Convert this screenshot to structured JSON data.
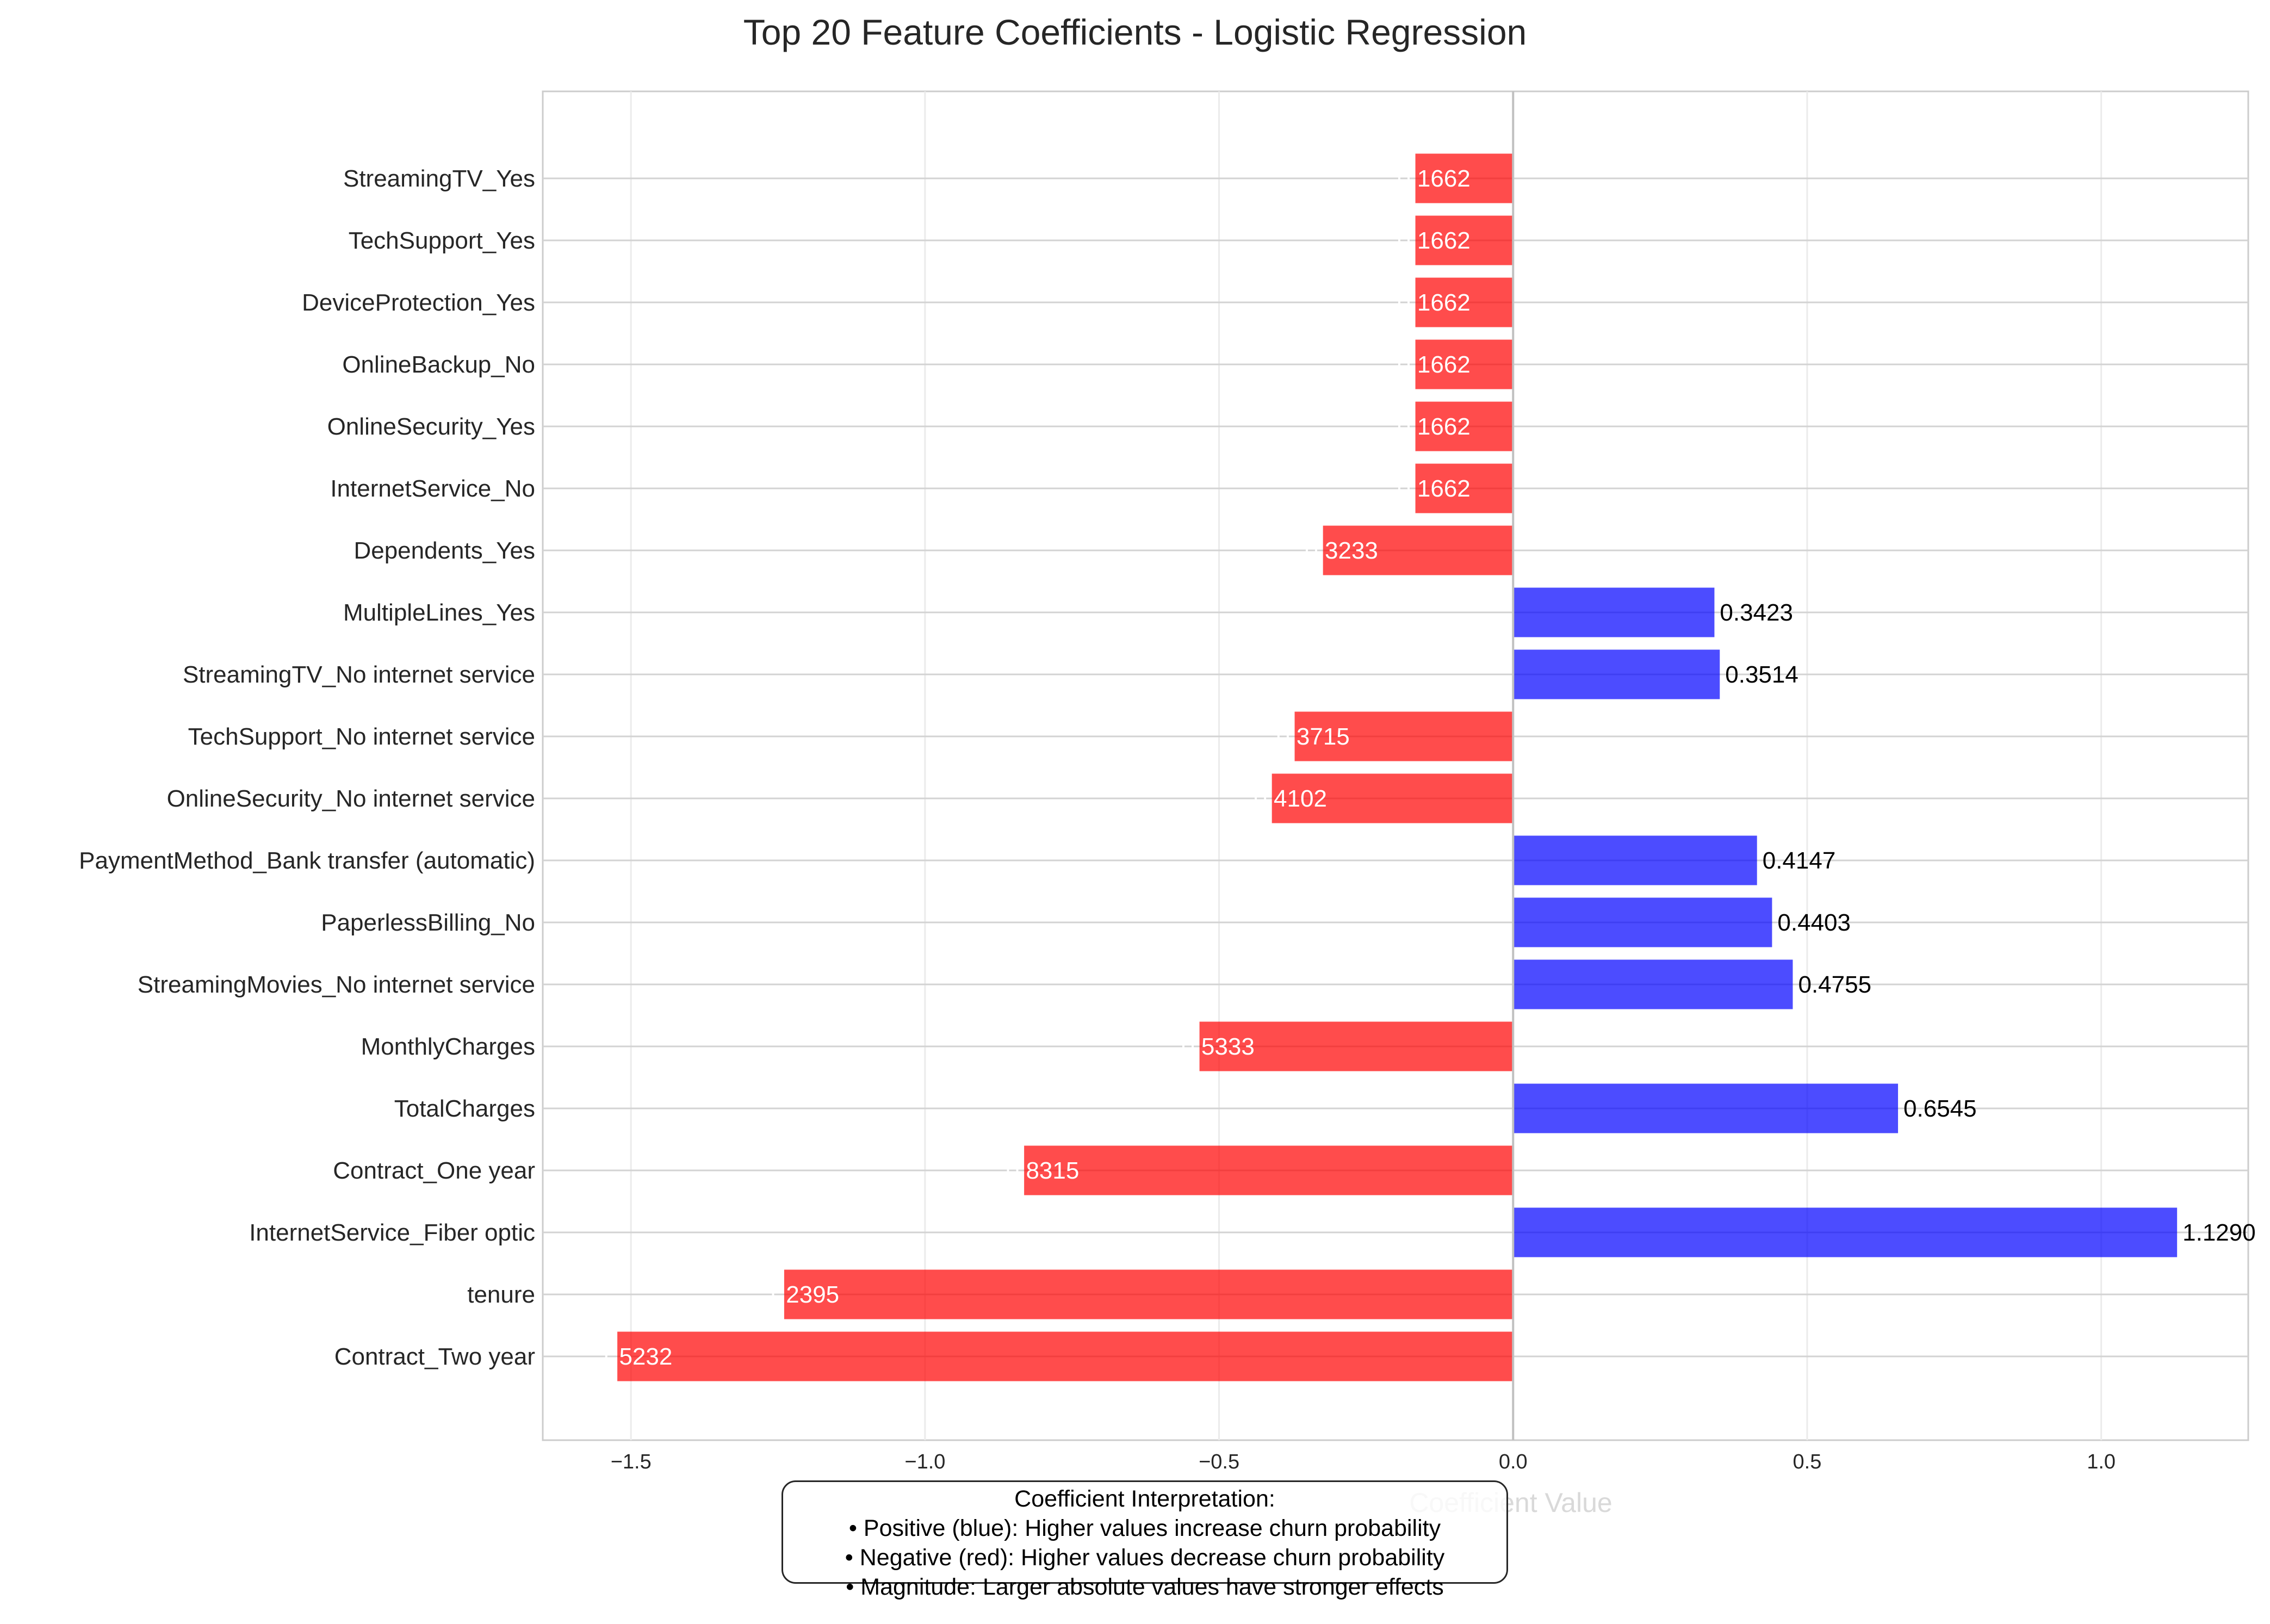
{
  "chart_data": {
    "type": "bar",
    "orientation": "horizontal",
    "title": "Top 20 Feature Coefficients - Logistic Regression",
    "xlabel": "Coefficient Value",
    "ylabel": "",
    "xlim": [
      -1.65,
      1.25
    ],
    "xticks": [
      -1.5,
      -1.0,
      -0.5,
      0.0,
      0.5,
      1.0
    ],
    "xtick_labels": [
      "−1.5",
      "−1.0",
      "−0.5",
      "0.0",
      "0.5",
      "1.0"
    ],
    "grid": true,
    "colors": {
      "positive": "#0000ff",
      "negative": "#ff0000"
    },
    "categories": [
      "StreamingTV_Yes",
      "TechSupport_Yes",
      "DeviceProtection_Yes",
      "OnlineBackup_No",
      "OnlineSecurity_Yes",
      "InternetService_No",
      "Dependents_Yes",
      "MultipleLines_Yes",
      "StreamingTV_No internet service",
      "TechSupport_No internet service",
      "OnlineSecurity_No internet service",
      "PaymentMethod_Bank transfer (automatic)",
      "PaperlessBilling_No",
      "StreamingMovies_No internet service",
      "MonthlyCharges",
      "TotalCharges",
      "Contract_One year",
      "InternetService_Fiber optic",
      "tenure",
      "Contract_Two year"
    ],
    "values": [
      -0.1662,
      -0.1662,
      -0.1662,
      -0.1662,
      -0.1662,
      -0.1662,
      -0.3233,
      0.3423,
      0.3514,
      -0.3715,
      -0.4102,
      0.4147,
      0.4403,
      0.4755,
      -0.5333,
      0.6545,
      -0.8315,
      1.129,
      -1.2395,
      -1.5232
    ],
    "value_labels": [
      "-0.1662",
      "-0.1662",
      "-0.1662",
      "-0.1662",
      "-0.1662",
      "-0.1662",
      "-0.3233",
      "0.3423",
      "0.3514",
      "-0.3715",
      "-0.4102",
      "0.4147",
      "0.4403",
      "0.4755",
      "-0.5333",
      "0.6545",
      "-0.8315",
      "1.1290",
      "-1.2395",
      "-1.5232"
    ]
  },
  "annotation": {
    "lines": [
      "Coefficient Interpretation:",
      "• Positive (blue): Higher values increase churn probability",
      "• Negative (red): Higher values decrease churn probability",
      "• Magnitude: Larger absolute values have stronger effects"
    ]
  }
}
